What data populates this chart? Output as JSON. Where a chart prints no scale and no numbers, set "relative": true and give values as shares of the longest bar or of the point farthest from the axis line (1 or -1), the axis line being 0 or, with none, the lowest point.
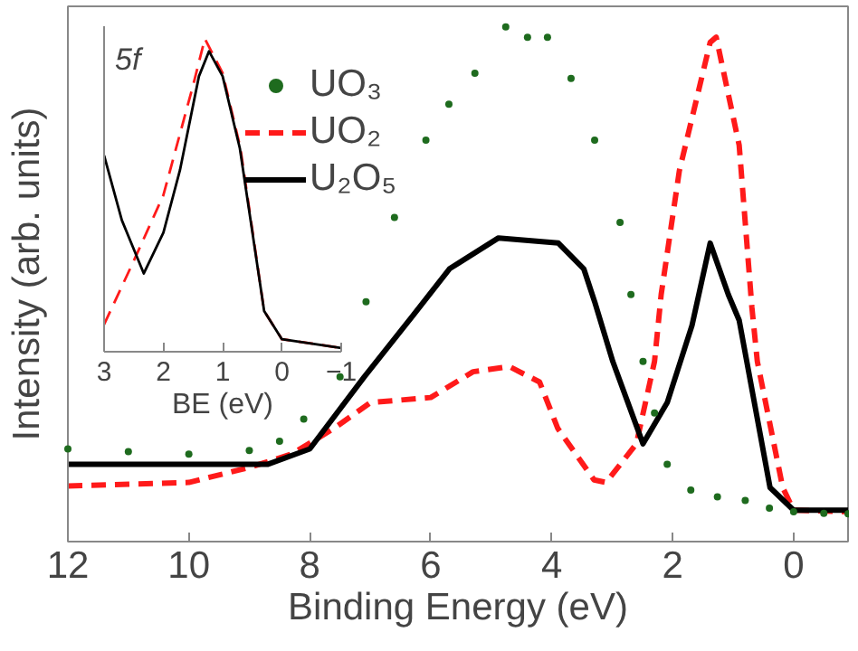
{
  "chart_data": [
    {
      "type": "line",
      "xlabel": "Binding Energy (eV)",
      "ylabel": "Intensity (arb. units)",
      "relative": true,
      "xlim": [
        12,
        -0.9
      ],
      "xticks": [
        12,
        10,
        8,
        6,
        4,
        2,
        0
      ],
      "legend": "top left",
      "grid": false,
      "series": [
        {
          "name": "UO₃",
          "type": "scatter",
          "marker": "circle",
          "color": "#1e6b1e",
          "x": [
            12,
            11,
            10,
            9,
            8.5,
            8.1,
            7.5,
            7.07,
            6.6,
            6.08,
            5.7,
            5.27,
            4.76,
            4.4,
            4.07,
            3.68,
            3.29,
            2.87,
            2.69,
            2.49,
            2.3,
            2.09,
            1.7,
            1.26,
            0.8,
            0.4,
            0,
            -0.5,
            -0.9
          ],
          "values": [
            0.18,
            0.175,
            0.17,
            0.177,
            0.195,
            0.238,
            0.32,
            0.466,
            0.63,
            0.78,
            0.85,
            0.91,
            1.0,
            0.98,
            0.98,
            0.9,
            0.78,
            0.62,
            0.48,
            0.35,
            0.25,
            0.15,
            0.1,
            0.087,
            0.08,
            0.065,
            0.058,
            0.055,
            0.054
          ]
        },
        {
          "name": "UO₂",
          "color": "#ff1a1a",
          "line_style": "dashed",
          "x": [
            12,
            10,
            9,
            8.3,
            7.6,
            7,
            6,
            5.3,
            4.7,
            4.2,
            3.9,
            3.3,
            3.1,
            2.6,
            2.3,
            2.19,
            1.89,
            1.38,
            1.28,
            0.9,
            0.69,
            0.6,
            0.18,
            0,
            -0.9
          ],
          "values": [
            0.108,
            0.115,
            0.144,
            0.17,
            0.22,
            0.27,
            0.28,
            0.33,
            0.34,
            0.31,
            0.22,
            0.12,
            0.115,
            0.19,
            0.35,
            0.48,
            0.72,
            0.97,
            0.98,
            0.77,
            0.455,
            0.35,
            0.105,
            0.061,
            0.058
          ]
        },
        {
          "name": "U₂O₅",
          "color": "#000000",
          "line_style": "solid",
          "x": [
            12,
            10,
            8.7,
            8,
            7.1,
            6.29,
            5.69,
            4.88,
            3.89,
            3.47,
            3.29,
            2.99,
            2.49,
            2.09,
            1.68,
            1.38,
            1.08,
            0.9,
            0.39,
            0,
            -0.9
          ],
          "values": [
            0.15,
            0.15,
            0.15,
            0.18,
            0.32,
            0.44,
            0.53,
            0.59,
            0.58,
            0.53,
            0.466,
            0.35,
            0.19,
            0.27,
            0.42,
            0.58,
            0.48,
            0.43,
            0.105,
            0.061,
            0.061
          ]
        }
      ]
    },
    {
      "type": "line",
      "xlabel": "BE (eV)",
      "annotations": [
        "5f"
      ],
      "relative": true,
      "xlim": [
        3,
        -1
      ],
      "xticks": [
        3,
        2,
        1,
        0,
        -1
      ],
      "series": [
        {
          "color": "#ff1a1a",
          "line_style": "dashed",
          "x": [
            3,
            2.5,
            2,
            1.5,
            1.3,
            1,
            0.7,
            0.3,
            0,
            -1
          ],
          "values": [
            0.087,
            0.29,
            0.5,
            0.85,
            1.0,
            0.89,
            0.65,
            0.13,
            0.04,
            0.012
          ]
        },
        {
          "color": "#000000",
          "line_style": "solid",
          "x": [
            3,
            2.7,
            2.33,
            2,
            1.72,
            1.4,
            1.23,
            1,
            0.71,
            0.3,
            0,
            -1
          ],
          "values": [
            0.627,
            0.42,
            0.25,
            0.38,
            0.58,
            0.88,
            0.96,
            0.88,
            0.65,
            0.13,
            0.04,
            0.012
          ]
        }
      ]
    }
  ]
}
